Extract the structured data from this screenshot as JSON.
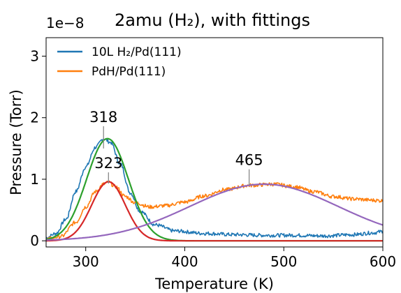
{
  "chart_data": {
    "type": "line",
    "title": "2amu (H₂), with fittings",
    "offset_text": "1e−8",
    "xlabel": "Temperature (K)",
    "ylabel": "Pressure (Torr)",
    "xlim": [
      260,
      600
    ],
    "ylim": [
      -0.1,
      3.3
    ],
    "y_scale_factor": 1e-08,
    "x_ticks": [
      300,
      400,
      500,
      600
    ],
    "x_tick_labels": [
      "300",
      "400",
      "500",
      "600"
    ],
    "y_ticks": [
      0,
      1,
      2,
      3
    ],
    "y_tick_labels": [
      "0",
      "1",
      "2",
      "3"
    ],
    "grid": false,
    "legend": {
      "placement": "top-left",
      "entries": [
        {
          "label": "10L H₂/Pd(111)",
          "color": "#1f77b4"
        },
        {
          "label": "PdH/Pd(111)",
          "color": "#ff7f0e"
        }
      ]
    },
    "series": [
      {
        "name": "10L H₂/Pd(111)",
        "color": "#1f77b4",
        "noisy": true,
        "x": [
          260,
          270,
          280,
          290,
          300,
          310,
          318,
          325,
          335,
          345,
          355,
          370,
          390,
          420,
          450,
          480,
          510,
          540,
          570,
          590,
          600
        ],
        "y": [
          0.05,
          0.12,
          0.35,
          0.8,
          1.2,
          1.52,
          1.66,
          1.6,
          1.25,
          0.78,
          0.48,
          0.26,
          0.16,
          0.12,
          0.1,
          0.09,
          0.09,
          0.08,
          0.1,
          0.13,
          0.15
        ]
      },
      {
        "name": "PdH/Pd(111)",
        "color": "#ff7f0e",
        "noisy": true,
        "x": [
          260,
          275,
          290,
          300,
          310,
          318,
          323,
          330,
          340,
          350,
          365,
          380,
          400,
          420,
          440,
          465,
          490,
          510,
          530,
          550,
          570,
          590,
          600
        ],
        "y": [
          0.03,
          0.07,
          0.3,
          0.55,
          0.8,
          0.92,
          0.95,
          0.88,
          0.72,
          0.62,
          0.55,
          0.57,
          0.63,
          0.73,
          0.83,
          0.9,
          0.92,
          0.88,
          0.8,
          0.72,
          0.68,
          0.66,
          0.65
        ]
      },
      {
        "color": "#2ca02c",
        "gaussian": {
          "center": 322,
          "amplitude": 1.66,
          "sigma": 21
        },
        "x_range": [
          260,
          600
        ]
      },
      {
        "color": "#d62728",
        "gaussian": {
          "center": 323,
          "amplitude": 0.96,
          "sigma": 17
        },
        "x_range": [
          260,
          600
        ]
      },
      {
        "color": "#9467bd",
        "gaussian": {
          "center": 480,
          "amplitude": 0.92,
          "sigma": 75
        },
        "x_range": [
          260,
          600
        ]
      }
    ],
    "annotations": [
      {
        "text": "318",
        "x": 318,
        "y_point": 1.5,
        "y_text": 1.93
      },
      {
        "text": "323",
        "x": 323,
        "y_point": 0.93,
        "y_text": 1.18
      },
      {
        "text": "465",
        "x": 465,
        "y_point": 0.9,
        "y_text": 1.23
      }
    ]
  }
}
